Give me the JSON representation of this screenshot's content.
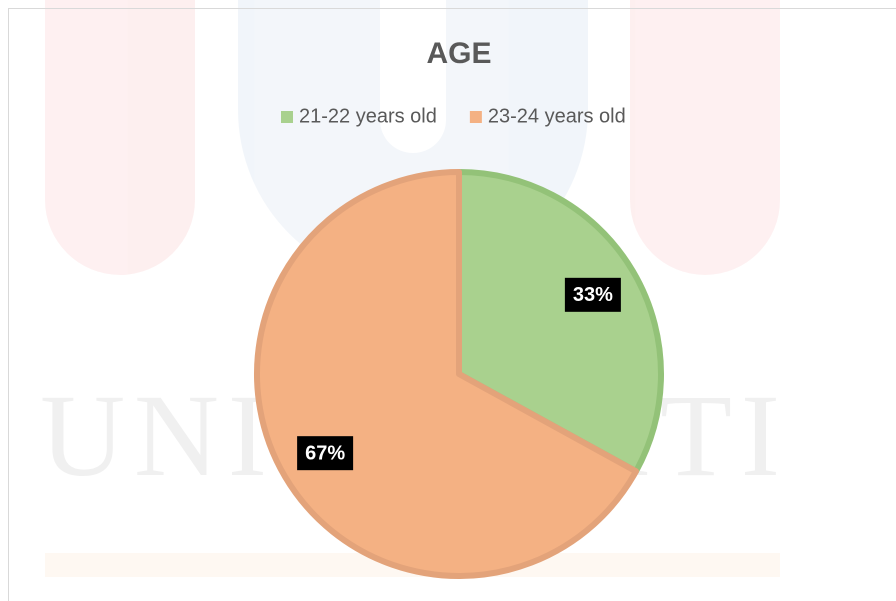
{
  "watermark": "UNIVERSITI",
  "chart_data": {
    "type": "pie",
    "title": "AGE",
    "categories": [
      "21-22 years old",
      "23-24 years old"
    ],
    "values": [
      33,
      67
    ],
    "value_labels": [
      "33%",
      "67%"
    ],
    "colors": [
      "#a9d18e",
      "#f4b183"
    ],
    "edge_colors": [
      "#93c278",
      "#e3a37a"
    ],
    "legend": "top"
  }
}
